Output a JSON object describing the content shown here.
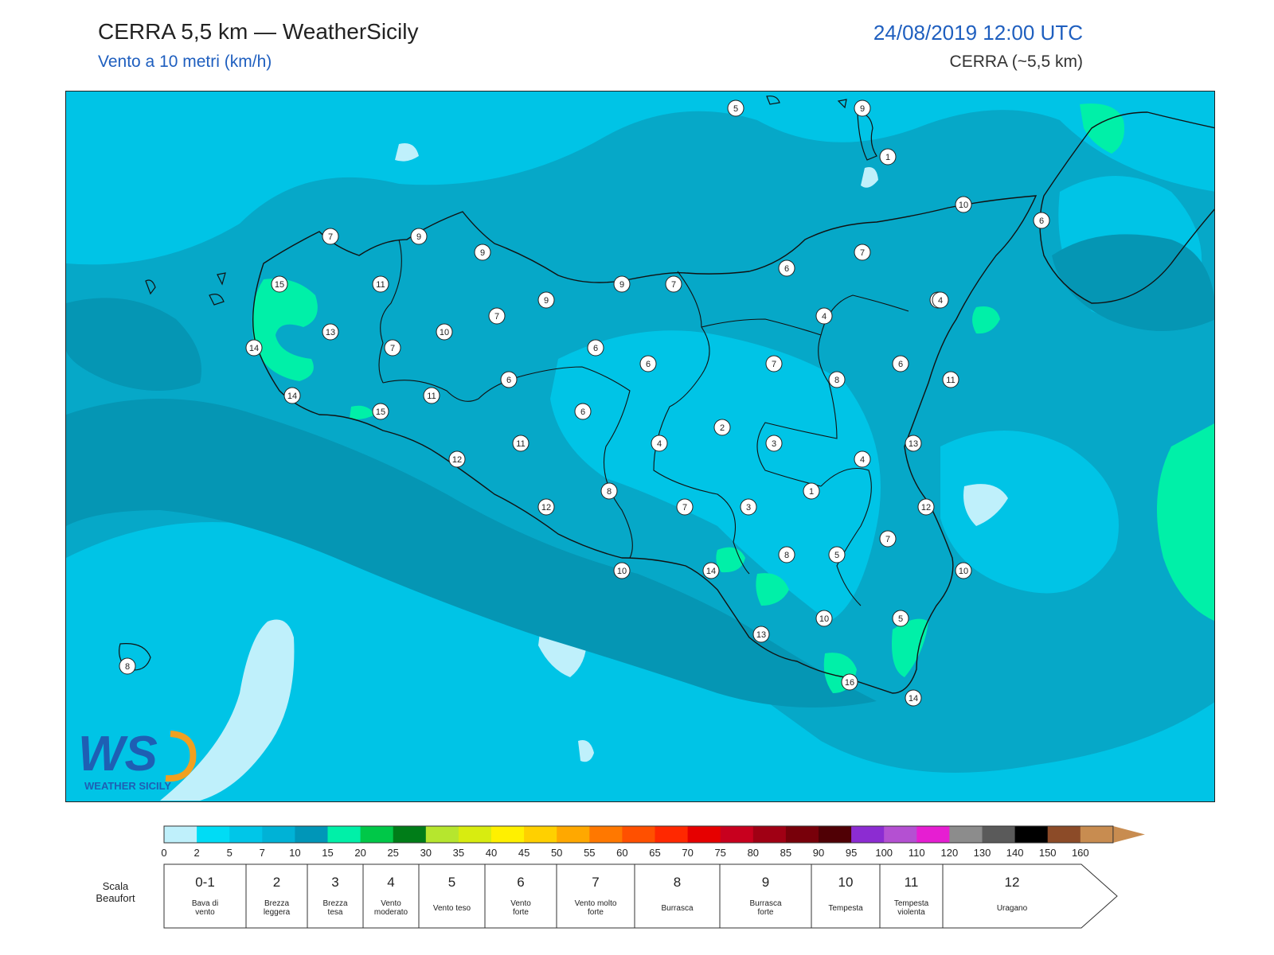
{
  "header": {
    "title": "CERRA 5,5 km — WeatherSicily",
    "subtitle": "Vento a 10 metri (km/h)",
    "datetime": "24/08/2019 12:00 UTC",
    "model": "CERRA (~5,5 km)"
  },
  "logo": {
    "letters": "WS",
    "brand": "WEATHER SICILY"
  },
  "stations": [
    {
      "label": "5"
    },
    {
      "label": "9"
    },
    {
      "label": "1"
    },
    {
      "label": "10"
    },
    {
      "label": "6"
    },
    {
      "label": "7"
    },
    {
      "label": "9"
    },
    {
      "label": "9"
    },
    {
      "label": "15"
    },
    {
      "label": "11"
    },
    {
      "label": "9"
    },
    {
      "label": "9"
    },
    {
      "label": "7"
    },
    {
      "label": "6"
    },
    {
      "label": "7"
    },
    {
      "label": "9"
    },
    {
      "label": "4"
    },
    {
      "label": "4"
    },
    {
      "label": "7"
    },
    {
      "label": "13"
    },
    {
      "label": "10"
    },
    {
      "label": "14"
    },
    {
      "label": "7"
    },
    {
      "label": "6"
    },
    {
      "label": "6"
    },
    {
      "label": "7"
    },
    {
      "label": "6"
    },
    {
      "label": "8"
    },
    {
      "label": "11"
    },
    {
      "label": "6"
    },
    {
      "label": "14"
    },
    {
      "label": "11"
    },
    {
      "label": "15"
    },
    {
      "label": "6"
    },
    {
      "label": "2"
    },
    {
      "label": "11"
    },
    {
      "label": "4"
    },
    {
      "label": "3"
    },
    {
      "label": "13"
    },
    {
      "label": "12"
    },
    {
      "label": "4"
    },
    {
      "label": "8"
    },
    {
      "label": "1"
    },
    {
      "label": "12"
    },
    {
      "label": "7"
    },
    {
      "label": "3"
    },
    {
      "label": "12"
    },
    {
      "label": "7"
    },
    {
      "label": "8"
    },
    {
      "label": "5"
    },
    {
      "label": "10"
    },
    {
      "label": "14"
    },
    {
      "label": "10"
    },
    {
      "label": "10"
    },
    {
      "label": "5"
    },
    {
      "label": "13"
    },
    {
      "label": "8"
    },
    {
      "label": "16"
    },
    {
      "label": "14"
    }
  ],
  "colorbar": {
    "ticks": [
      "0",
      "2",
      "5",
      "7",
      "10",
      "15",
      "20",
      "25",
      "30",
      "35",
      "40",
      "45",
      "50",
      "55",
      "60",
      "65",
      "70",
      "75",
      "80",
      "85",
      "90",
      "95",
      "100",
      "110",
      "120",
      "130",
      "140",
      "150",
      "160"
    ],
    "colors": [
      "#bff0fb",
      "#00dcf5",
      "#00c6e8",
      "#00b2d6",
      "#0096b8",
      "#00f0a8",
      "#00c848",
      "#007d18",
      "#b6e62e",
      "#d8ec10",
      "#fff000",
      "#ffd000",
      "#ffa800",
      "#ff7800",
      "#ff5000",
      "#ff2800",
      "#e60000",
      "#c8001e",
      "#a00014",
      "#78000a",
      "#500005",
      "#8c2cd2",
      "#b450d2",
      "#e61ed2",
      "#8c8c8c",
      "#5a5a5a",
      "#000000",
      "#8c4b28",
      "#c88c50"
    ]
  },
  "beaufort": {
    "title": "Scala Beaufort",
    "levels": [
      {
        "num": "0-1",
        "desc": [
          "Bava di",
          "vento"
        ]
      },
      {
        "num": "2",
        "desc": [
          "Brezza",
          "leggera"
        ]
      },
      {
        "num": "3",
        "desc": [
          "Brezza",
          "tesa"
        ]
      },
      {
        "num": "4",
        "desc": [
          "Vento",
          "moderato"
        ]
      },
      {
        "num": "5",
        "desc": [
          "Vento teso"
        ]
      },
      {
        "num": "6",
        "desc": [
          "Vento",
          "forte"
        ]
      },
      {
        "num": "7",
        "desc": [
          "Vento molto",
          "forte"
        ]
      },
      {
        "num": "8",
        "desc": [
          "Burrasca"
        ]
      },
      {
        "num": "9",
        "desc": [
          "Burrasca",
          "forte"
        ]
      },
      {
        "num": "10",
        "desc": [
          "Tempesta"
        ]
      },
      {
        "num": "11",
        "desc": [
          "Tempesta",
          "violenta"
        ]
      },
      {
        "num": "12",
        "desc": [
          "Uragano"
        ]
      }
    ]
  }
}
